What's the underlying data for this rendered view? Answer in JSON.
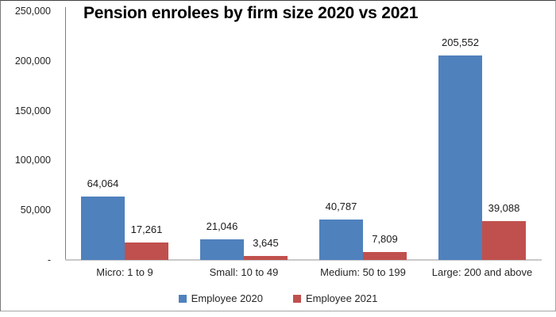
{
  "chart_data": {
    "type": "bar",
    "title": "Pension enrolees by firm size 2020 vs 2021",
    "categories": [
      "Micro: 1 to 9",
      "Small: 10 to 49",
      "Medium: 50 to 199",
      "Large: 200 and above"
    ],
    "series": [
      {
        "name": "Employee 2020",
        "color": "#4F81BD",
        "values": [
          64064,
          21046,
          40787,
          205552
        ],
        "labels": [
          "64,064",
          "21,046",
          "40,787",
          "205,552"
        ]
      },
      {
        "name": "Employee 2021",
        "color": "#C0504D",
        "values": [
          17261,
          3645,
          7809,
          39088
        ],
        "labels": [
          "17,261",
          "3,645",
          "7,809",
          "39,088"
        ]
      }
    ],
    "ylim": [
      0,
      250000
    ],
    "yticks": [
      {
        "value": 250000,
        "label": "250,000"
      },
      {
        "value": 200000,
        "label": "200,000"
      },
      {
        "value": 150000,
        "label": "150,000"
      },
      {
        "value": 100000,
        "label": "100,000"
      },
      {
        "value": 50000,
        "label": "50,000"
      },
      {
        "value": 0,
        "label": "-"
      }
    ],
    "grid": false,
    "data_labels": true,
    "legend_position": "bottom"
  },
  "colors": {
    "axis_line": "#808080",
    "baseline": "#c9c9c9",
    "text": "#262626",
    "title": "#000000",
    "background": "#ffffff"
  }
}
